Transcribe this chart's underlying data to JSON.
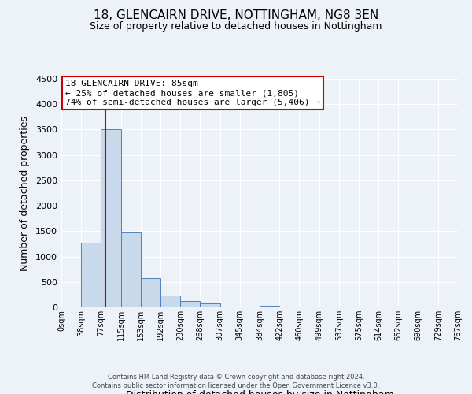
{
  "title": "18, GLENCAIRN DRIVE, NOTTINGHAM, NG8 3EN",
  "subtitle": "Size of property relative to detached houses in Nottingham",
  "xlabel": "Distribution of detached houses by size in Nottingham",
  "ylabel": "Number of detached properties",
  "bin_labels": [
    "0sqm",
    "38sqm",
    "77sqm",
    "115sqm",
    "153sqm",
    "192sqm",
    "230sqm",
    "268sqm",
    "307sqm",
    "345sqm",
    "384sqm",
    "422sqm",
    "460sqm",
    "499sqm",
    "537sqm",
    "575sqm",
    "614sqm",
    "652sqm",
    "690sqm",
    "729sqm",
    "767sqm"
  ],
  "bar_values": [
    0,
    1270,
    3500,
    1480,
    580,
    240,
    130,
    75,
    0,
    0,
    30,
    0,
    0,
    0,
    0,
    0,
    0,
    0,
    0,
    0
  ],
  "bar_color": "#c9d9ec",
  "bar_edgecolor": "#4f81bd",
  "property_line_x": 85,
  "property_line_color": "#cc0000",
  "ylim": [
    0,
    4500
  ],
  "yticks": [
    0,
    500,
    1000,
    1500,
    2000,
    2500,
    3000,
    3500,
    4000,
    4500
  ],
  "annotation_title": "18 GLENCAIRN DRIVE: 85sqm",
  "annotation_line1": "← 25% of detached houses are smaller (1,805)",
  "annotation_line2": "74% of semi-detached houses are larger (5,406) →",
  "annotation_box_color": "#ffffff",
  "annotation_box_edgecolor": "#cc0000",
  "footer_line1": "Contains HM Land Registry data © Crown copyright and database right 2024.",
  "footer_line2": "Contains public sector information licensed under the Open Government Licence v3.0.",
  "background_color": "#edf2f9",
  "grid_color": "#ffffff",
  "bin_width": 38
}
